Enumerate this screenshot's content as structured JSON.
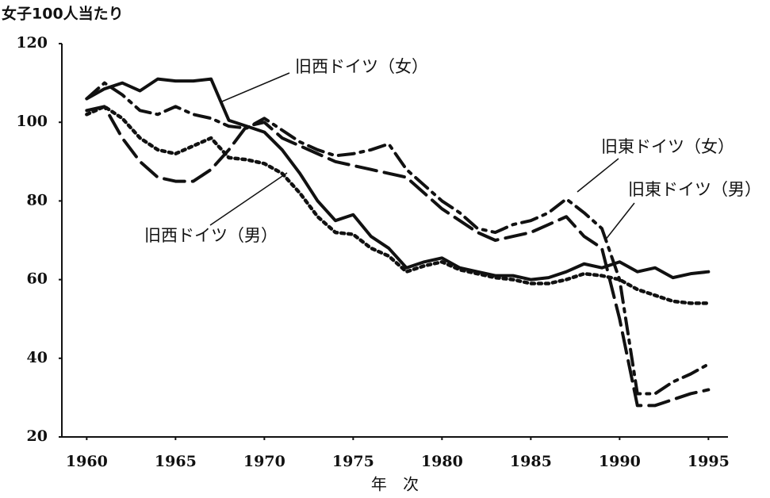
{
  "chart_data": {
    "type": "line",
    "ylabel": "女子100人当たり",
    "xlabel": "年 次",
    "x": [
      1960,
      1961,
      1962,
      1963,
      1964,
      1965,
      1966,
      1967,
      1968,
      1969,
      1970,
      1971,
      1972,
      1973,
      1974,
      1975,
      1976,
      1977,
      1978,
      1979,
      1980,
      1981,
      1982,
      1983,
      1984,
      1985,
      1986,
      1987,
      1988,
      1989,
      1990,
      1991,
      1992,
      1993,
      1994,
      1995
    ],
    "series": [
      {
        "name": "旧西ドイツ（女）",
        "color": "#111111",
        "style": "solid",
        "values": [
          106,
          108.5,
          110,
          108,
          111,
          110.5,
          110.5,
          111,
          100.5,
          99,
          97.5,
          93,
          87,
          80,
          75,
          76.5,
          71,
          68,
          63,
          64.5,
          65.5,
          63,
          62,
          61,
          61,
          60,
          60.5,
          62,
          64,
          63,
          64.5,
          62,
          63,
          60.5,
          61.5,
          62
        ]
      },
      {
        "name": "旧西ドイツ（男）",
        "color": "#111111",
        "style": "dotted",
        "values": [
          102,
          104,
          101,
          96,
          93,
          92,
          94,
          96,
          91,
          90.5,
          89.5,
          87,
          82,
          76,
          72,
          71.5,
          68,
          66,
          62,
          63.5,
          64.5,
          62.5,
          61.5,
          60.5,
          60,
          59,
          59,
          60,
          61.5,
          61,
          60,
          57.5,
          56,
          54.5,
          54,
          54
        ]
      },
      {
        "name": "旧東ドイツ（女）",
        "color": "#111111",
        "style": "dashdot",
        "values": [
          106,
          110,
          107,
          103,
          102,
          104,
          102,
          101,
          99,
          98.5,
          101,
          98,
          95,
          93,
          91.5,
          92,
          93,
          94.5,
          88,
          84,
          80,
          77,
          73,
          72,
          74,
          75,
          77,
          80.5,
          77,
          73,
          60,
          31,
          31,
          34,
          36,
          38.5
        ]
      },
      {
        "name": "旧東ドイツ（男）",
        "color": "#111111",
        "style": "dashed",
        "values": [
          103,
          104,
          96,
          90,
          86,
          85,
          85,
          88,
          93,
          99,
          100,
          96,
          94,
          92,
          90,
          89,
          88,
          87,
          86,
          82,
          78,
          75,
          72,
          70,
          71,
          72,
          74,
          76,
          71,
          68,
          50,
          28,
          28,
          29.5,
          31,
          32
        ]
      }
    ],
    "xlim": [
      1958.6,
      1996.1
    ],
    "xticks": [
      1960,
      1965,
      1970,
      1975,
      1980,
      1985,
      1990,
      1995
    ],
    "ylim": [
      20,
      120
    ],
    "yticks": [
      20,
      40,
      60,
      80,
      100,
      120
    ]
  }
}
